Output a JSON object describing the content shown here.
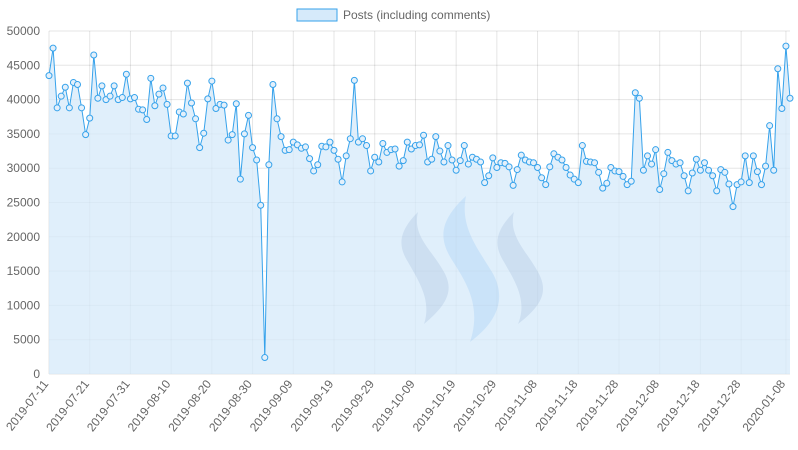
{
  "colors": {
    "line": "#36a2eb",
    "fill": "#d6eafa",
    "point_fill": "#e3f0fb",
    "logo_dark": "#b2bfd8",
    "logo_light": "#a9cff7"
  },
  "chart_data": {
    "type": "area",
    "title": "",
    "xlabel": "",
    "ylabel": "",
    "ylim": [
      0,
      50000
    ],
    "y_ticks": [
      0,
      5000,
      10000,
      15000,
      20000,
      25000,
      30000,
      35000,
      40000,
      45000,
      50000
    ],
    "x_ticks": [
      "2019-07-11",
      "2019-07-21",
      "2019-07-31",
      "2019-08-10",
      "2019-08-20",
      "2019-08-30",
      "2019-09-09",
      "2019-09-19",
      "2019-09-29",
      "2019-10-09",
      "2019-10-19",
      "2019-10-29",
      "2019-11-08",
      "2019-11-18",
      "2019-11-28",
      "2019-12-08",
      "2019-12-18",
      "2019-12-28",
      "2020-01-08"
    ],
    "x_start": "2019-07-11",
    "legend": "top-center",
    "grid": true,
    "series": [
      {
        "name": "Posts (including comments)",
        "values": [
          43500,
          47500,
          38800,
          40500,
          41800,
          38800,
          42500,
          42200,
          38800,
          34900,
          37300,
          46500,
          40200,
          42000,
          40000,
          40500,
          42000,
          40000,
          40300,
          43700,
          40100,
          40300,
          38600,
          38500,
          37100,
          43100,
          39100,
          40800,
          41700,
          39300,
          34700,
          34700,
          38200,
          37900,
          42400,
          39500,
          37200,
          33000,
          35100,
          40100,
          42700,
          38700,
          39300,
          39200,
          34100,
          34900,
          39400,
          28400,
          35000,
          37700,
          33000,
          31200,
          24600,
          2400,
          30500,
          42200,
          37200,
          34600,
          32600,
          32700,
          33800,
          33400,
          32900,
          33100,
          31400,
          29600,
          30500,
          33200,
          33100,
          33800,
          32600,
          31300,
          28000,
          31800,
          34300,
          42800,
          33800,
          34300,
          33300,
          29600,
          31600,
          30900,
          33600,
          32300,
          32700,
          32800,
          30300,
          31100,
          33800,
          32800,
          33300,
          33400,
          34800,
          30900,
          31300,
          34600,
          32500,
          30900,
          33300,
          31200,
          29700,
          31100,
          33300,
          30600,
          31600,
          31300,
          30900,
          27900,
          28900,
          31500,
          30100,
          30800,
          30700,
          30200,
          27500,
          29800,
          31900,
          31200,
          30900,
          30800,
          30100,
          28600,
          27600,
          30200,
          32100,
          31600,
          31200,
          30100,
          29000,
          28400,
          27900,
          33300,
          31000,
          30900,
          30800,
          29400,
          27100,
          27800,
          30100,
          29600,
          29500,
          28800,
          27600,
          28100,
          41000,
          40200,
          29700,
          31800,
          30600,
          32700,
          26900,
          29200,
          32300,
          31100,
          30600,
          30800,
          28900,
          26700,
          29300,
          31300,
          29700,
          30800,
          29700,
          28900,
          26700,
          29800,
          29400,
          27700,
          24400,
          27600,
          28000,
          31800,
          27900,
          31800,
          29500,
          27600,
          30300,
          36200,
          29700,
          44500,
          38700,
          47800,
          40200
        ]
      }
    ]
  }
}
